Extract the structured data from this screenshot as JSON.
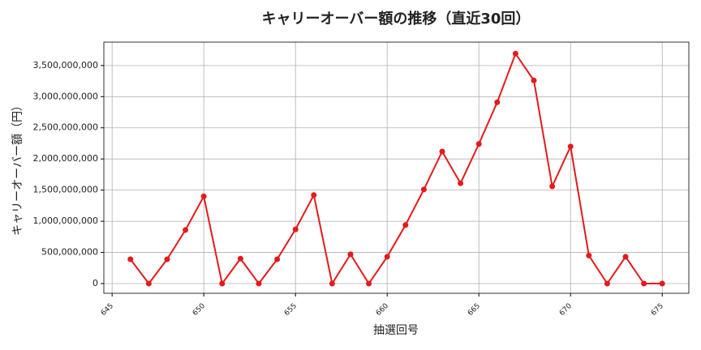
{
  "chart_data": {
    "type": "line",
    "title": "キャリーオーバー額の推移（直近30回）",
    "xlabel": "抽選回号",
    "ylabel": "キャリーオーバー額（円）",
    "x": [
      646,
      647,
      648,
      649,
      650,
      651,
      652,
      653,
      654,
      655,
      656,
      657,
      658,
      659,
      660,
      661,
      662,
      663,
      664,
      665,
      666,
      667,
      668,
      669,
      670,
      671,
      672,
      673,
      674,
      675
    ],
    "values": [
      390000000,
      0,
      390000000,
      860000000,
      1400000000,
      0,
      400000000,
      0,
      390000000,
      870000000,
      1420000000,
      0,
      470000000,
      0,
      430000000,
      940000000,
      1510000000,
      2120000000,
      1610000000,
      2240000000,
      2910000000,
      3690000000,
      3260000000,
      1560000000,
      2200000000,
      450000000,
      0,
      430000000,
      0,
      0
    ],
    "color": "#e41a1c",
    "xlim": [
      644.55,
      676.45
    ],
    "ylim": [
      -156000000,
      3875000000
    ],
    "xticks": [
      645,
      650,
      655,
      660,
      665,
      670,
      675
    ],
    "yticks": [
      {
        "value": 0,
        "label": "0"
      },
      {
        "value": 500000000,
        "label": "500,000,000"
      },
      {
        "value": 1000000000,
        "label": "1,000,000,000"
      },
      {
        "value": 1500000000,
        "label": "1,500,000,000"
      },
      {
        "value": 2000000000,
        "label": "2,000,000,000"
      },
      {
        "value": 2500000000,
        "label": "2,500,000,000"
      },
      {
        "value": 3000000000,
        "label": "3,000,000,000"
      },
      {
        "value": 3500000000,
        "label": "3,500,000,000"
      }
    ],
    "grid": true
  }
}
